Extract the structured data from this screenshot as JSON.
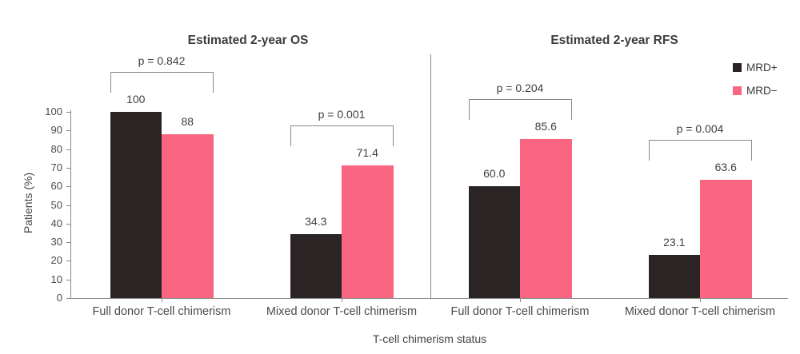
{
  "chart_data": {
    "type": "bar",
    "title": "",
    "ylabel": "Patients (%)",
    "xlabel": "T-cell chimerism status",
    "ylim": [
      0,
      100
    ],
    "yticks": [
      0,
      10,
      20,
      30,
      40,
      50,
      60,
      70,
      80,
      90,
      100
    ],
    "grid": false,
    "legend_position": "top-right",
    "series": [
      {
        "name": "MRD+",
        "color": "#2b2425"
      },
      {
        "name": "MRD−",
        "color": "#fa6581"
      }
    ],
    "panels": [
      {
        "title": "Estimated 2-year OS",
        "groups": [
          {
            "category": "Full donor T-cell chimerism",
            "p_value_label": "p = 0.842",
            "values": [
              100,
              88
            ],
            "value_labels": [
              "100",
              "88"
            ]
          },
          {
            "category": "Mixed donor T-cell chimerism",
            "p_value_label": "p = 0.001",
            "values": [
              34.3,
              71.4
            ],
            "value_labels": [
              "34.3",
              "71.4"
            ]
          }
        ]
      },
      {
        "title": "Estimated 2-year RFS",
        "groups": [
          {
            "category": "Full donor T-cell chimerism",
            "p_value_label": "p = 0.204",
            "values": [
              60.0,
              85.6
            ],
            "value_labels": [
              "60.0",
              "85.6"
            ]
          },
          {
            "category": "Mixed donor T-cell chimerism",
            "p_value_label": "p = 0.004",
            "values": [
              23.1,
              63.6
            ],
            "value_labels": [
              "23.1",
              "63.6"
            ]
          }
        ]
      }
    ]
  }
}
